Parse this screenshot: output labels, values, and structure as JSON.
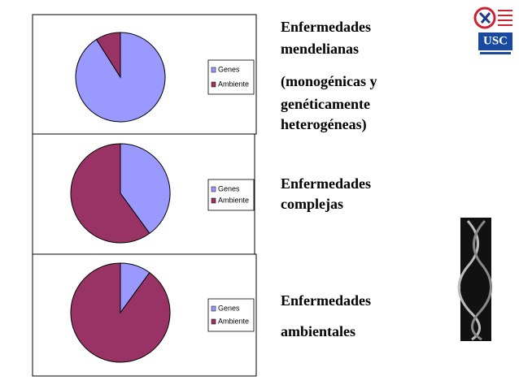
{
  "chart_data": [
    {
      "type": "pie",
      "categories": [
        "Genes",
        "Ambiente"
      ],
      "values": [
        91,
        9
      ],
      "colors": [
        "#9999ff",
        "#993366"
      ]
    },
    {
      "type": "pie",
      "categories": [
        "Genes",
        "Ambiente"
      ],
      "values": [
        40,
        60
      ],
      "colors": [
        "#9999ff",
        "#993366"
      ]
    },
    {
      "type": "pie",
      "categories": [
        "Genes",
        "Ambiente"
      ],
      "values": [
        10,
        90
      ],
      "colors": [
        "#9999ff",
        "#993366"
      ]
    }
  ],
  "slide": {
    "blocks": [
      [
        "Enfermedades",
        "mendelianas"
      ],
      [
        "(monogénicas y",
        "genéticamente",
        "heterogéneas)"
      ],
      [
        "Enfermedades",
        "complejas"
      ],
      [
        "Enfermedades",
        "ambientales"
      ]
    ],
    "logo_text": "USC"
  }
}
